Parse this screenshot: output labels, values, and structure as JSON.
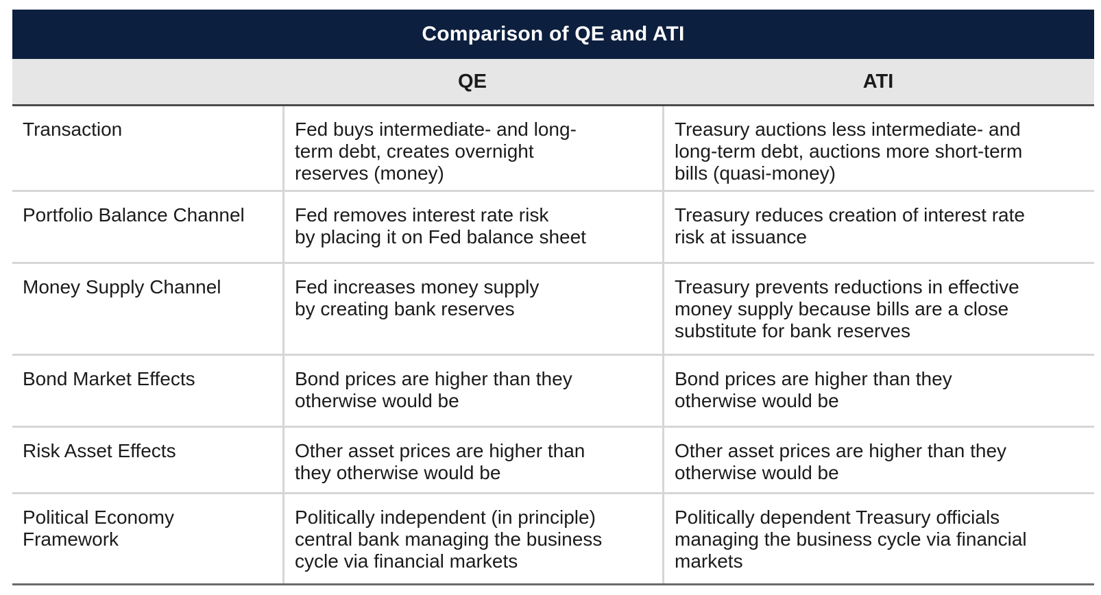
{
  "table": {
    "title": "Comparison of QE and ATI",
    "headers": {
      "label": "",
      "qe": "QE",
      "ati": "ATI"
    },
    "rows": [
      {
        "label": "Transaction",
        "qe": "Fed buys intermediate- and long-\nterm debt, creates overnight\nreserves (money)",
        "ati": "Treasury auctions less intermediate- and\nlong-term debt, auctions more short-term\nbills (quasi-money)"
      },
      {
        "label": "Portfolio Balance Channel",
        "qe": "Fed removes interest rate risk\nby placing it on Fed balance sheet",
        "ati": "Treasury reduces creation of interest rate\nrisk at issuance"
      },
      {
        "label": "Money Supply Channel",
        "qe": "Fed increases money supply\nby creating bank reserves",
        "ati": "Treasury prevents reductions in effective\nmoney supply because bills are a close\nsubstitute for bank reserves"
      },
      {
        "label": "Bond Market Effects",
        "qe": "Bond prices are higher than they\notherwise would be",
        "ati": "Bond prices are higher than they\notherwise would be"
      },
      {
        "label": "Risk Asset Effects",
        "qe": "Other asset prices are higher than\nthey otherwise would be",
        "ati": "Other asset prices are higher than they\notherwise would be"
      },
      {
        "label": "Political Economy\nFramework",
        "qe": "Politically independent (in principle)\ncentral bank managing the business\ncycle via financial markets",
        "ati": "Politically dependent Treasury officials\nmanaging the business cycle via financial\nmarkets"
      }
    ]
  }
}
